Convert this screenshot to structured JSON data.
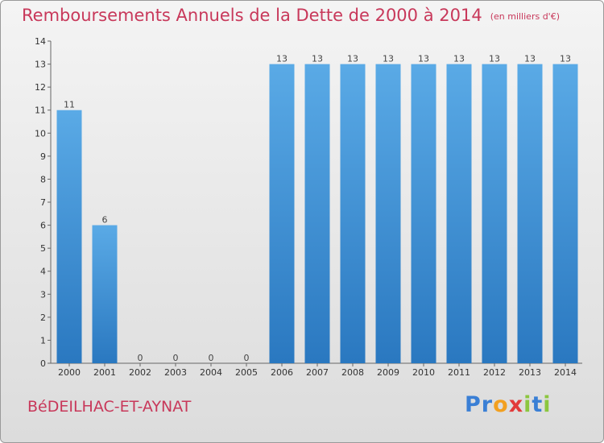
{
  "header": {
    "title": "Remboursements Annuels de la Dette de 2000 à 2014",
    "unit": "(en milliers d'€)"
  },
  "footer": {
    "commune": "BéDEILHAC-ET-AYNAT",
    "logo_letters": [
      {
        "char": "P",
        "color": "#3a7fd5"
      },
      {
        "char": "r",
        "color": "#3a7fd5"
      },
      {
        "char": "o",
        "color": "#f2a020"
      },
      {
        "char": "x",
        "color": "#e23a3a"
      },
      {
        "char": "i",
        "color": "#8cc63f"
      },
      {
        "char": "t",
        "color": "#3a7fd5"
      },
      {
        "char": "i",
        "color": "#8cc63f"
      }
    ]
  },
  "chart_data": {
    "type": "bar",
    "title": "Remboursements Annuels de la Dette de 2000 à 2014",
    "subtitle": "(en milliers d'€)",
    "categories": [
      "2000",
      "2001",
      "2002",
      "2003",
      "2004",
      "2005",
      "2006",
      "2007",
      "2008",
      "2009",
      "2010",
      "2011",
      "2012",
      "2013",
      "2014"
    ],
    "values": [
      11,
      6,
      0,
      0,
      0,
      0,
      13,
      13,
      13,
      13,
      13,
      13,
      13,
      13,
      13
    ],
    "data_labels": [
      "11",
      "6",
      "0",
      "0",
      "0",
      "0",
      "13",
      "13",
      "13",
      "13",
      "13",
      "13",
      "13",
      "13",
      "13"
    ],
    "yticks": [
      0,
      1,
      2,
      3,
      4,
      5,
      6,
      7,
      8,
      9,
      10,
      11,
      12,
      13,
      14
    ],
    "ylim": [
      0,
      14
    ],
    "grid": false,
    "bar_color_light": "#5aaae6",
    "bar_color_dark": "#2a78c0"
  }
}
